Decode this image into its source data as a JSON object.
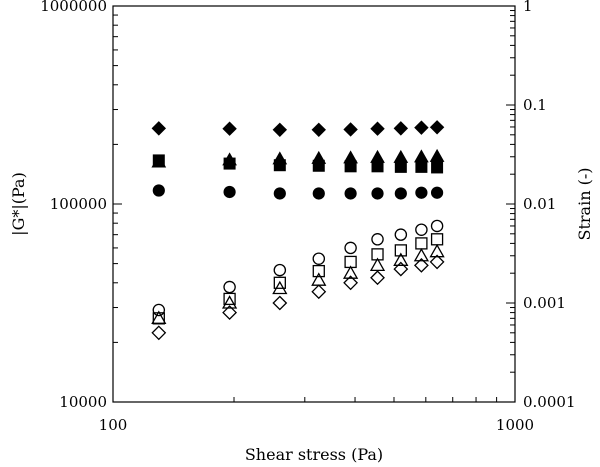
{
  "chart_data": {
    "type": "scatter",
    "xlabel": "Shear stress (Pa)",
    "ylabel_left": "|G*|(Pa)",
    "ylabel_right": "Strain (-)",
    "x_scale": "log",
    "y_scale": "log",
    "y2_scale": "log",
    "xlim": [
      100,
      1000
    ],
    "ylim": [
      10000,
      1000000
    ],
    "y2lim": [
      0.0001,
      1
    ],
    "x_ticks": [
      "100",
      "1000"
    ],
    "y_ticks": [
      "10000",
      "100000",
      "1000000"
    ],
    "y2_ticks": [
      "0.0001",
      "0.001",
      "0.01",
      "0.1",
      "1"
    ],
    "grid": false,
    "legend": "none",
    "x": [
      130,
      195,
      260,
      325,
      390,
      455,
      520,
      585,
      640
    ],
    "series": [
      {
        "axis": "left",
        "marker": "filled-diamond",
        "values": [
          241000,
          240000,
          237000,
          237000,
          238000,
          240000,
          241000,
          243000,
          244000
        ]
      },
      {
        "axis": "left",
        "marker": "filled-triangle",
        "values": [
          163000,
          167000,
          169000,
          170000,
          171000,
          172000,
          172000,
          173000,
          174000
        ]
      },
      {
        "axis": "left",
        "marker": "filled-square",
        "values": [
          166000,
          160000,
          157000,
          156000,
          155000,
          155000,
          154000,
          154000,
          153000
        ]
      },
      {
        "axis": "left",
        "marker": "filled-circle",
        "values": [
          117000,
          115000,
          113000,
          113000,
          113000,
          113000,
          113000,
          114000,
          114000
        ]
      },
      {
        "axis": "right",
        "marker": "open-circle",
        "values": [
          0.00085,
          0.00145,
          0.00215,
          0.0028,
          0.0036,
          0.0044,
          0.0049,
          0.0055,
          0.006
        ]
      },
      {
        "axis": "right",
        "marker": "open-square",
        "values": [
          0.0007,
          0.0011,
          0.0016,
          0.0021,
          0.0026,
          0.0031,
          0.0034,
          0.004,
          0.0044
        ]
      },
      {
        "axis": "right",
        "marker": "open-triangle",
        "values": [
          0.0007,
          0.001,
          0.0014,
          0.0017,
          0.002,
          0.0024,
          0.0027,
          0.003,
          0.0033
        ]
      },
      {
        "axis": "right",
        "marker": "open-diamond",
        "values": [
          0.0005,
          0.0008,
          0.001,
          0.0013,
          0.0016,
          0.0018,
          0.0022,
          0.0024,
          0.0026
        ]
      }
    ]
  }
}
